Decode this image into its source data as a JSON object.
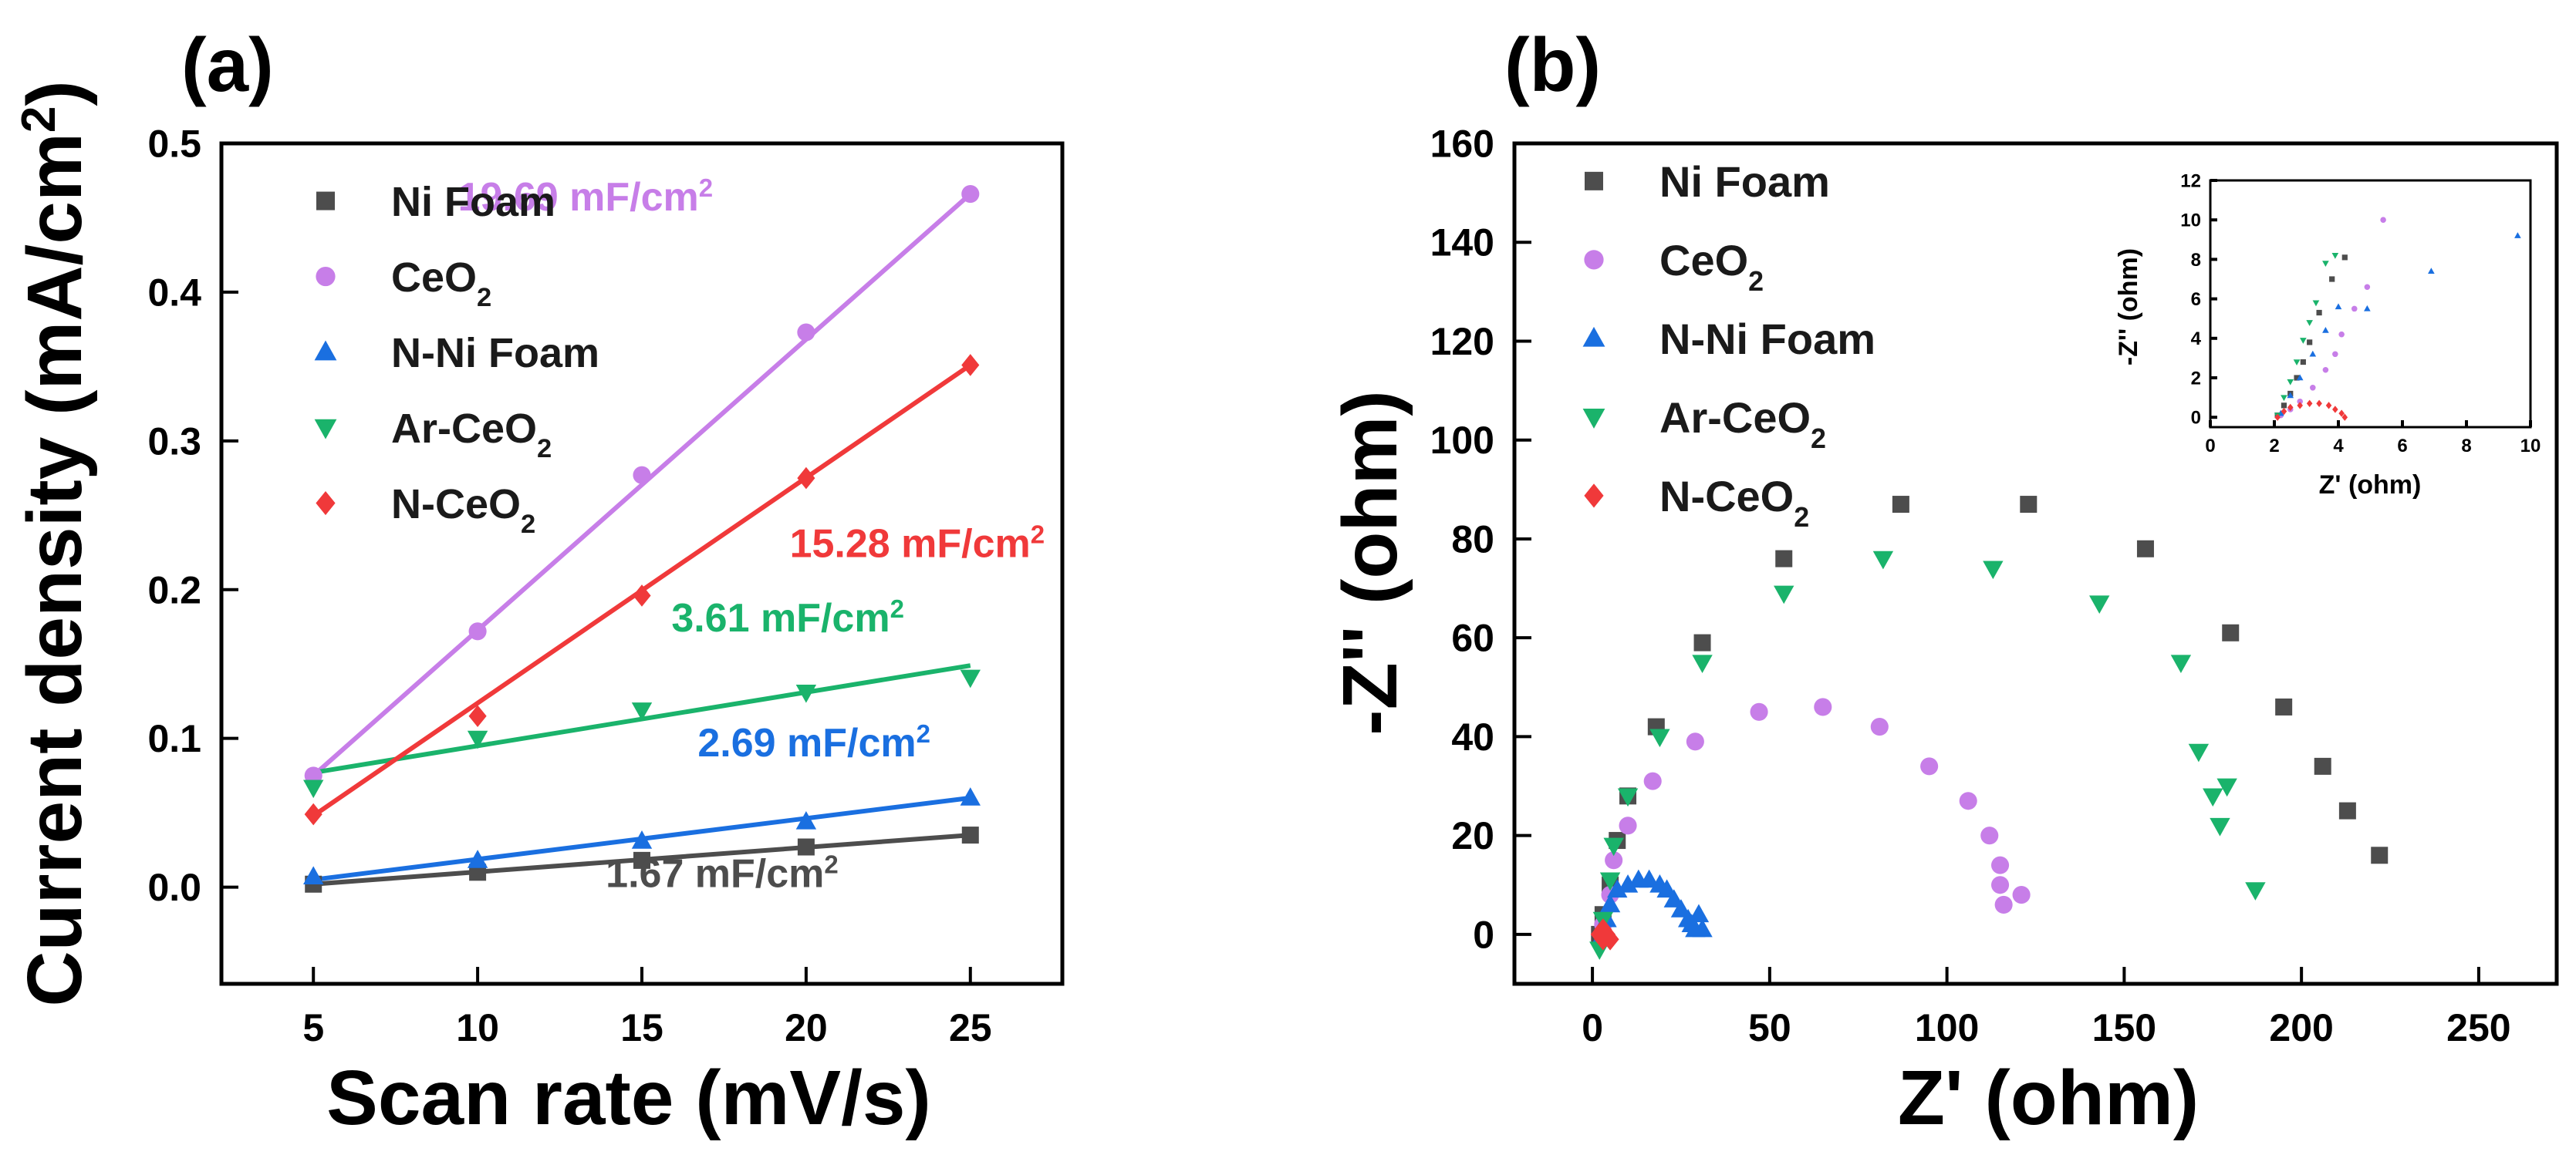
{
  "chart_data": [
    {
      "panel_label": "(a)",
      "type": "scatter",
      "xlabel": "Scan rate (mV/s)",
      "ylabel": "Current density (mA/cm",
      "ylabel_sup": "2",
      "ylabel_close": ")",
      "xlim": [
        2.2,
        27.8
      ],
      "ylim": [
        -0.065,
        0.5
      ],
      "xticks": [
        5,
        10,
        15,
        20,
        25
      ],
      "yticks": [
        0.0,
        0.1,
        0.2,
        0.3,
        0.4,
        0.5
      ],
      "x": [
        5,
        10,
        15,
        20,
        25
      ],
      "grid": false,
      "legend": "top-left",
      "series": [
        {
          "name": "Ni Foam",
          "name_main": "Ni Foam",
          "name_sub": "",
          "color": "#4d4d4d",
          "marker": "square",
          "values": [
            0.002,
            0.01,
            0.018,
            0.027,
            0.035
          ],
          "fit": [
            0.002,
            0.035
          ],
          "annotation": "1.67 mF/cm",
          "annotation_sup": "2",
          "annotation_at": [
            13.9,
            0.0
          ]
        },
        {
          "name": "CeO2",
          "name_main": "CeO",
          "name_sub": "2",
          "color": "#c77ee8",
          "marker": "circle",
          "values": [
            0.075,
            0.172,
            0.277,
            0.373,
            0.466
          ],
          "fit": [
            0.075,
            0.466
          ],
          "annotation": "19.69 mF/cm",
          "annotation_sup": "2",
          "annotation_at": [
            9.4,
            0.455
          ]
        },
        {
          "name": "N-Ni Foam",
          "name_main": "N-Ni Foam",
          "name_sub": "",
          "color": "#1a6fe0",
          "marker": "triangle-up",
          "values": [
            0.007,
            0.018,
            0.031,
            0.044,
            0.06
          ],
          "fit": [
            0.005,
            0.06
          ],
          "annotation": "2.69 mF/cm",
          "annotation_sup": "2",
          "annotation_at": [
            16.7,
            0.088
          ]
        },
        {
          "name": "Ar-CeO2",
          "name_main": "Ar-CeO",
          "name_sub": "2",
          "color": "#1ab36b",
          "marker": "triangle-down",
          "values": [
            0.067,
            0.1,
            0.119,
            0.131,
            0.141
          ],
          "fit": [
            0.077,
            0.149
          ],
          "annotation": "3.61 mF/cm",
          "annotation_sup": "2",
          "annotation_at": [
            15.9,
            0.172
          ]
        },
        {
          "name": "N-CeO2",
          "name_main": "N-CeO",
          "name_sub": "2",
          "color": "#f0393a",
          "marker": "diamond",
          "values": [
            0.049,
            0.115,
            0.196,
            0.275,
            0.351
          ],
          "fit": [
            0.048,
            0.351
          ],
          "annotation": "15.28 mF/cm",
          "annotation_sup": "2",
          "annotation_at": [
            19.5,
            0.222
          ]
        }
      ]
    },
    {
      "panel_label": "(b)",
      "type": "scatter",
      "xlabel": "Z' (ohm)",
      "ylabel": "-Z'' (ohm)",
      "xlim": [
        -22,
        272
      ],
      "ylim": [
        -10,
        160
      ],
      "xticks": [
        0,
        50,
        100,
        150,
        200,
        250
      ],
      "yticks": [
        0,
        20,
        40,
        60,
        80,
        100,
        120,
        140,
        160
      ],
      "grid": false,
      "legend": "top-left",
      "series": [
        {
          "name": "Ni Foam",
          "name_main": "Ni Foam",
          "name_sub": "",
          "color": "#4d4d4d",
          "marker": "square",
          "points": [
            [
              2,
              0
            ],
            [
              3,
              4
            ],
            [
              5,
              10
            ],
            [
              7,
              19
            ],
            [
              10,
              28
            ],
            [
              18,
              42
            ],
            [
              31,
              59
            ],
            [
              54,
              76
            ],
            [
              87,
              87
            ],
            [
              123,
              87
            ],
            [
              156,
              78
            ],
            [
              180,
              61
            ],
            [
              195,
              46
            ],
            [
              206,
              34
            ],
            [
              213,
              25
            ],
            [
              222,
              16
            ]
          ]
        },
        {
          "name": "CeO2",
          "name_main": "CeO",
          "name_sub": "2",
          "color": "#c77ee8",
          "marker": "circle",
          "points": [
            [
              3,
              2
            ],
            [
              5,
              8
            ],
            [
              6,
              15
            ],
            [
              10,
              22
            ],
            [
              17,
              31
            ],
            [
              29,
              39
            ],
            [
              47,
              45
            ],
            [
              65,
              46
            ],
            [
              81,
              42
            ],
            [
              95,
              34
            ],
            [
              106,
              27
            ],
            [
              112,
              20
            ],
            [
              115,
              14
            ],
            [
              115,
              10
            ],
            [
              116,
              6
            ],
            [
              121,
              8
            ]
          ]
        },
        {
          "name": "N-Ni Foam",
          "name_main": "N-Ni Foam",
          "name_sub": "",
          "color": "#1a6fe0",
          "marker": "triangle-up",
          "points": [
            [
              3,
              0
            ],
            [
              4,
              3
            ],
            [
              5,
              6
            ],
            [
              7,
              9
            ],
            [
              10,
              10
            ],
            [
              13,
              11
            ],
            [
              16,
              11
            ],
            [
              19,
              10
            ],
            [
              21,
              9
            ],
            [
              23,
              7
            ],
            [
              25,
              5
            ],
            [
              27,
              3
            ],
            [
              28,
              2
            ],
            [
              29,
              1
            ],
            [
              31,
              1
            ],
            [
              30,
              4
            ]
          ]
        },
        {
          "name": "Ar-CeO2",
          "name_main": "Ar-CeO",
          "name_sub": "2",
          "color": "#1ab36b",
          "marker": "triangle-down",
          "points": [
            [
              2,
              -3
            ],
            [
              3,
              3
            ],
            [
              5,
              11
            ],
            [
              6,
              18
            ],
            [
              10,
              28
            ],
            [
              19,
              40
            ],
            [
              31,
              55
            ],
            [
              54,
              69
            ],
            [
              82,
              76
            ],
            [
              113,
              74
            ],
            [
              143,
              67
            ],
            [
              166,
              55
            ],
            [
              171,
              37
            ],
            [
              175,
              28
            ],
            [
              179,
              30
            ],
            [
              177,
              22
            ],
            [
              187,
              9
            ]
          ]
        },
        {
          "name": "N-CeO2",
          "name_main": "N-CeO",
          "name_sub": "2",
          "color": "#f0393a",
          "marker": "diamond",
          "points": [
            [
              2,
              0
            ],
            [
              3,
              1
            ],
            [
              4,
              0
            ],
            [
              5,
              -1
            ],
            [
              3,
              -1
            ]
          ]
        }
      ],
      "inset": {
        "xlabel": "Z' (ohm)",
        "ylabel": "-Z'' (ohm)",
        "xlim": [
          0,
          10
        ],
        "ylim": [
          -0.5,
          12
        ],
        "xticks": [
          0,
          2,
          4,
          6,
          8,
          10
        ],
        "yticks": [
          0,
          2,
          4,
          6,
          8,
          10,
          12
        ],
        "series": [
          {
            "name": "Ni Foam",
            "color": "#4d4d4d",
            "marker": "square",
            "points": [
              [
                2.1,
                0.1
              ],
              [
                2.3,
                0.6
              ],
              [
                2.5,
                1.2
              ],
              [
                2.7,
                2.0
              ],
              [
                2.9,
                2.8
              ],
              [
                3.1,
                3.8
              ],
              [
                3.4,
                5.3
              ],
              [
                3.8,
                7.0
              ],
              [
                4.2,
                8.1
              ]
            ]
          },
          {
            "name": "CeO2",
            "name_main": "CeO",
            "name_sub": "2",
            "color": "#c77ee8",
            "marker": "circle",
            "points": [
              [
                2.2,
                0.1
              ],
              [
                2.5,
                0.4
              ],
              [
                2.8,
                0.8
              ],
              [
                3.2,
                1.5
              ],
              [
                3.6,
                2.4
              ],
              [
                3.9,
                3.2
              ],
              [
                4.1,
                4.2
              ],
              [
                4.5,
                5.5
              ],
              [
                4.9,
                6.6
              ],
              [
                5.4,
                10.0
              ]
            ]
          },
          {
            "name": "N-Ni Foam",
            "color": "#1a6fe0",
            "marker": "triangle-up",
            "points": [
              [
                2.2,
                0.2
              ],
              [
                2.5,
                1.1
              ],
              [
                2.8,
                2.0
              ],
              [
                3.2,
                3.2
              ],
              [
                3.6,
                4.4
              ],
              [
                4.0,
                5.6
              ],
              [
                4.9,
                5.5
              ],
              [
                6.9,
                7.4
              ],
              [
                9.6,
                9.2
              ]
            ]
          },
          {
            "name": "Ar-CeO2",
            "color": "#1ab36b",
            "marker": "triangle-down",
            "points": [
              [
                2.1,
                0.1
              ],
              [
                2.3,
                1.0
              ],
              [
                2.5,
                1.8
              ],
              [
                2.7,
                2.8
              ],
              [
                2.9,
                3.9
              ],
              [
                3.1,
                4.8
              ],
              [
                3.3,
                5.8
              ],
              [
                3.6,
                7.8
              ],
              [
                3.9,
                8.2
              ]
            ]
          },
          {
            "name": "N-CeO2",
            "color": "#f0393a",
            "marker": "diamond",
            "points": [
              [
                2.1,
                0.0
              ],
              [
                2.3,
                0.3
              ],
              [
                2.5,
                0.5
              ],
              [
                2.8,
                0.6
              ],
              [
                3.1,
                0.7
              ],
              [
                3.4,
                0.7
              ],
              [
                3.7,
                0.6
              ],
              [
                3.9,
                0.4
              ],
              [
                4.1,
                0.2
              ],
              [
                4.2,
                0.0
              ]
            ]
          }
        ]
      }
    }
  ]
}
